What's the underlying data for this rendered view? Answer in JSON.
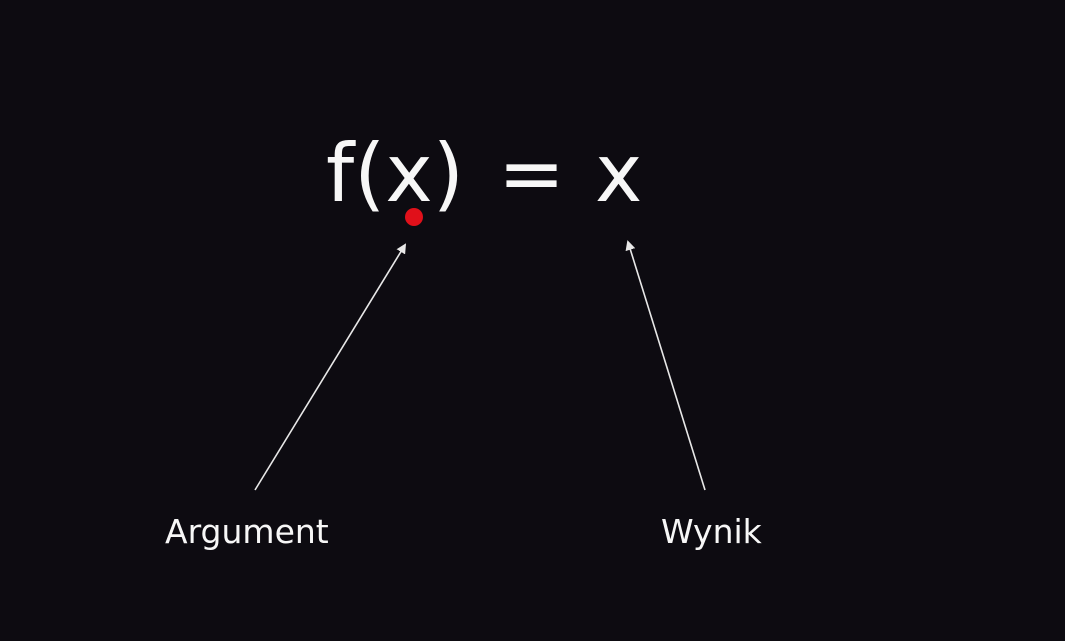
{
  "formula": {
    "f": "f",
    "open_paren": "(",
    "argument": "x",
    "close_paren": ")",
    "equals": "=",
    "result": "x"
  },
  "labels": {
    "argument": "Argument",
    "result": "Wynik"
  },
  "colors": {
    "background": "#0d0b11",
    "text": "#f7f7f7",
    "highlight_dot": "#e0101a",
    "arrow": "#e8e8e8"
  },
  "icons": {
    "highlight": "red-dot-icon",
    "pointer": "arrow-icon"
  }
}
